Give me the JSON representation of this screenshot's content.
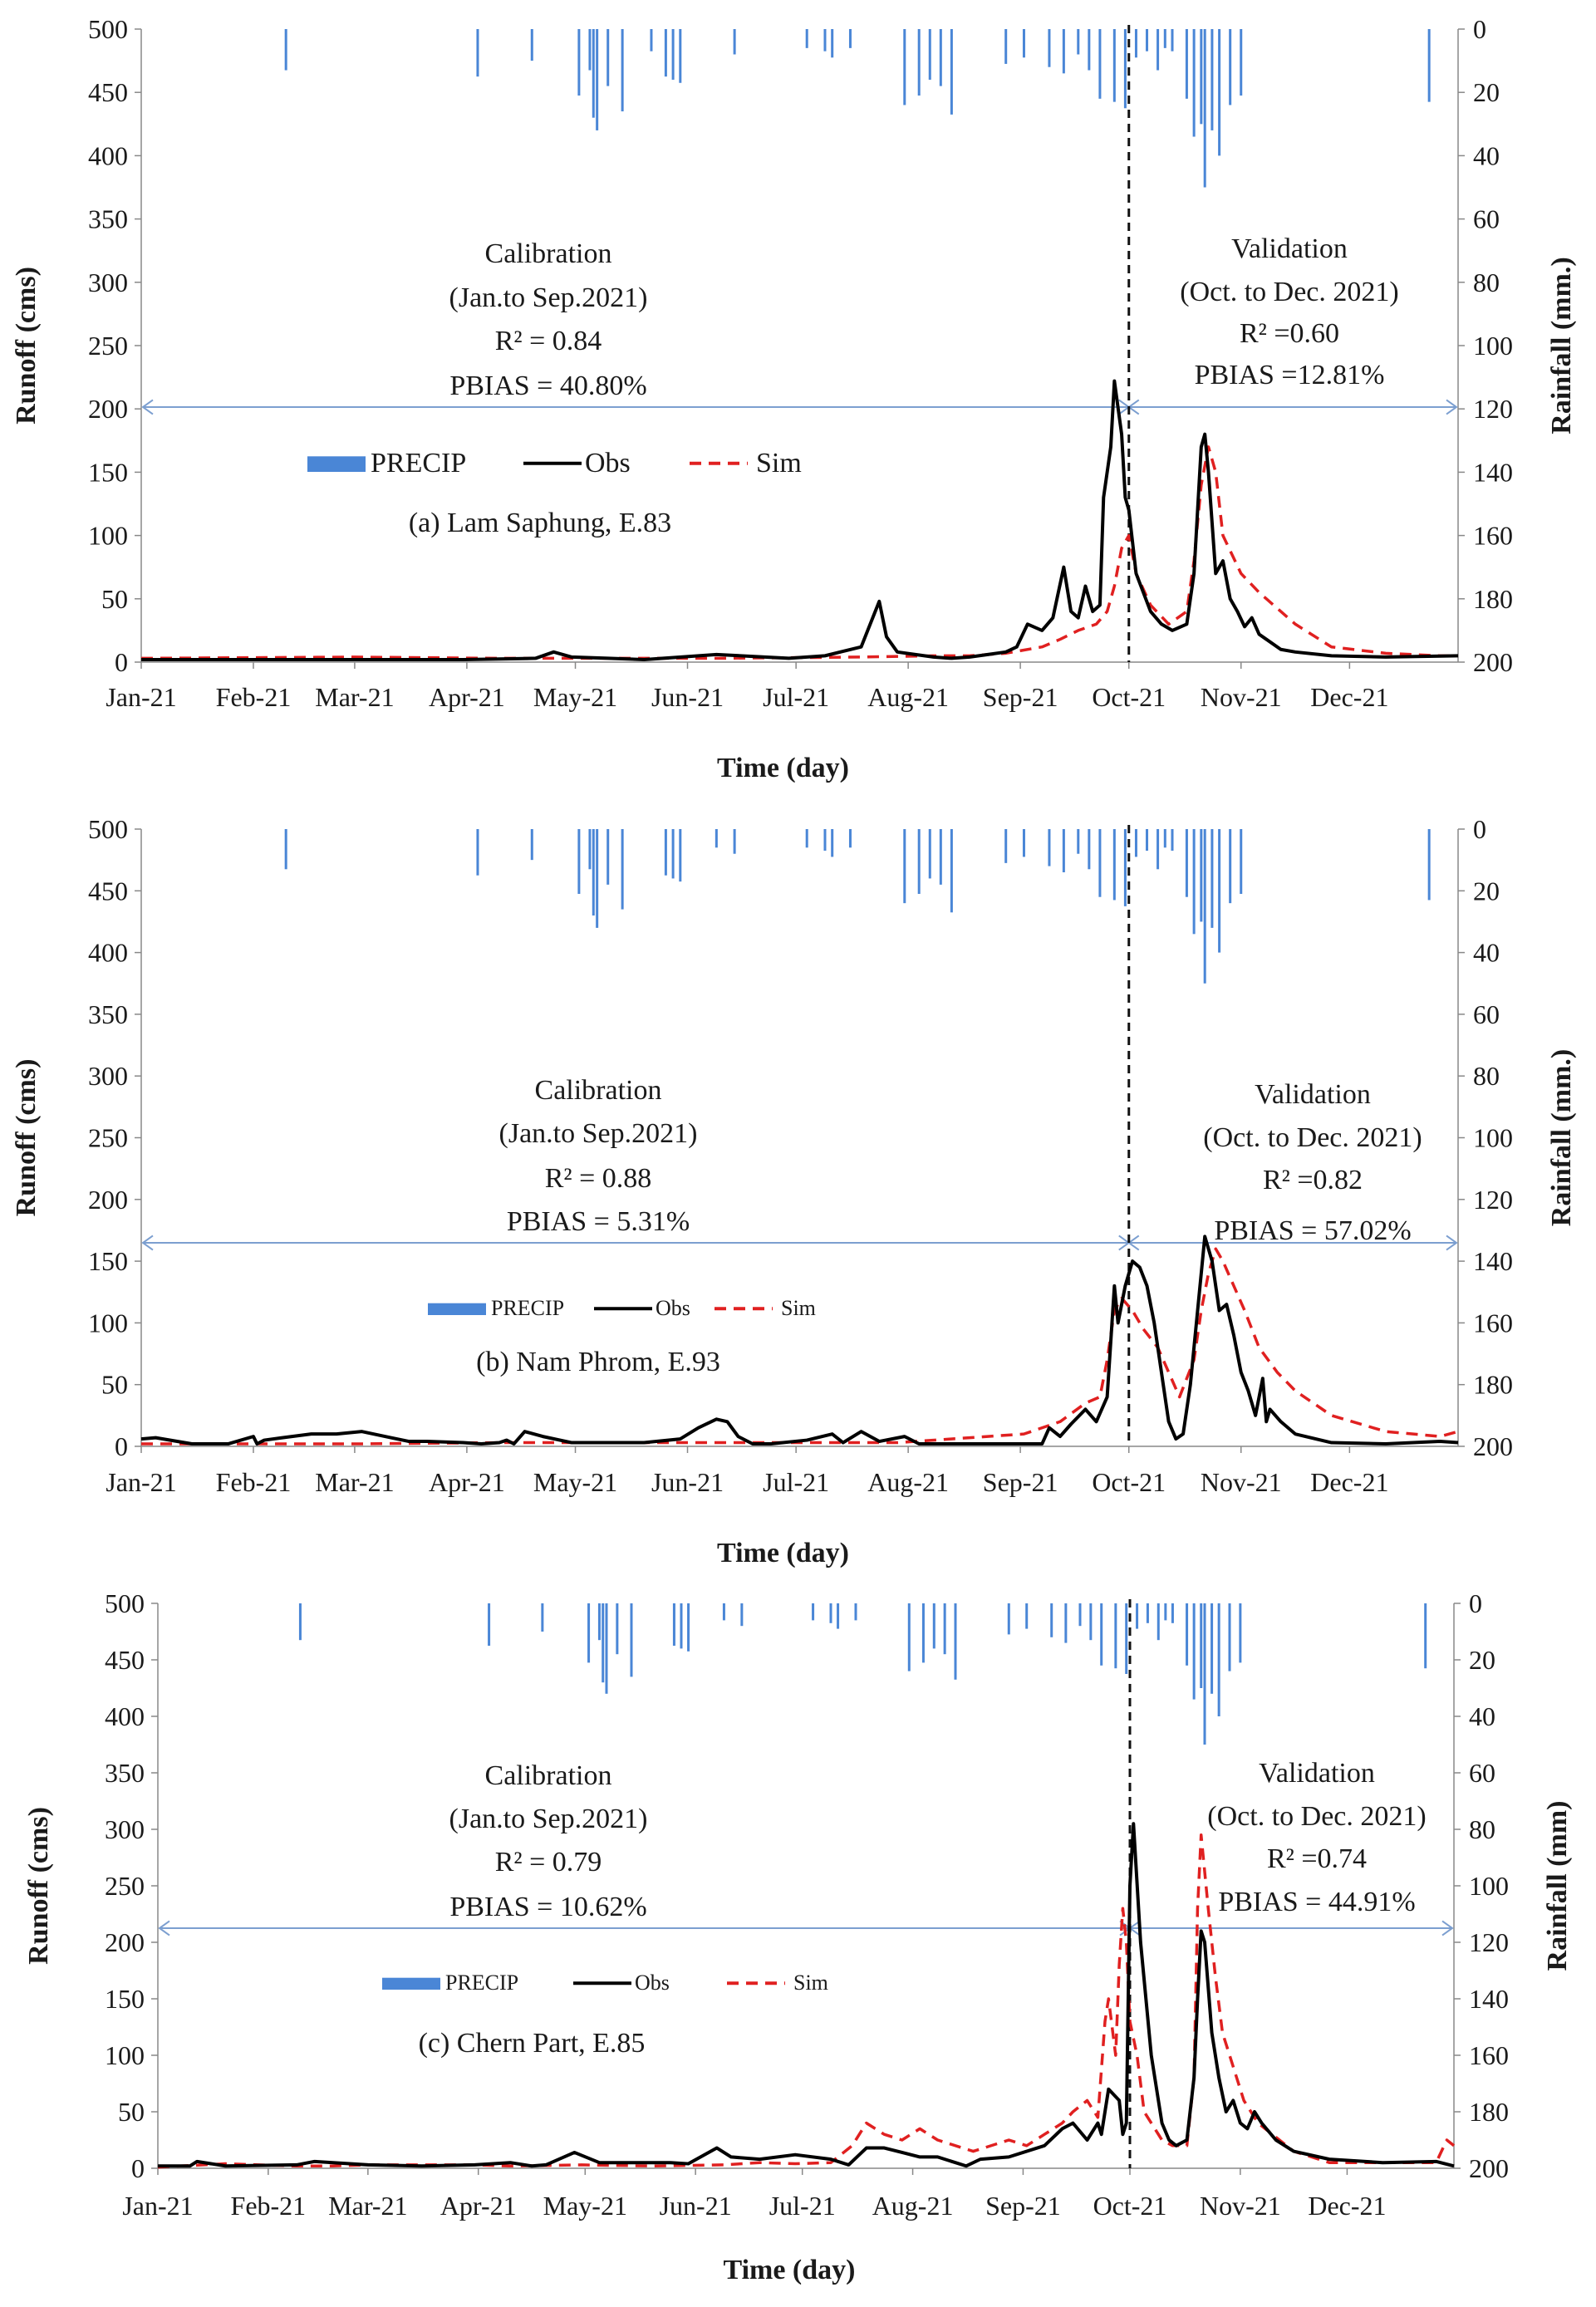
{
  "legend_labels": {
    "precip": "PRECIP",
    "obs": "Obs",
    "sim": "Sim"
  },
  "colors": {
    "precip": "#4a86d6",
    "obs": "#000000",
    "sim": "#e02020",
    "period_line": "#7c9fd0"
  },
  "chart_data": [
    {
      "type": "line",
      "panel_label": "(a) Lam Saphung, E.83",
      "xlabel": "Time (day)",
      "ylabel": "Runoff (cms)",
      "y2label": "Rainfall (mm.)",
      "x_tick_labels": [
        "Jan-21",
        "Feb-21",
        "Mar-21",
        "Apr-21",
        "May-21",
        "Jun-21",
        "Jul-21",
        "Aug-21",
        "Sep-21",
        "Oct-21",
        "Nov-21",
        "Dec-21"
      ],
      "x_range": [
        1,
        365
      ],
      "ylim": [
        0,
        500
      ],
      "yticks": [
        0,
        50,
        100,
        150,
        200,
        250,
        300,
        350,
        400,
        450,
        500
      ],
      "y2lim_inverted": [
        0,
        200
      ],
      "y2ticks": [
        0,
        20,
        40,
        60,
        80,
        100,
        120,
        140,
        160,
        180,
        200
      ],
      "split_day": 274,
      "calibration": {
        "title": "Calibration",
        "period": "(Jan.to Sep.2021)",
        "r2": "R² = 0.84",
        "pbias": "PBIAS = 40.80%"
      },
      "validation": {
        "title": "Validation",
        "period": "(Oct. to Dec. 2021)",
        "r2": "R² =0.60",
        "pbias": "PBIAS =12.81%"
      },
      "precip": {
        "day": [
          41,
          94,
          109,
          122,
          125,
          126,
          127,
          130,
          134,
          142,
          146,
          148,
          150,
          165,
          185,
          190,
          192,
          197,
          212,
          216,
          219,
          222,
          225,
          240,
          245,
          252,
          256,
          260,
          263,
          266,
          270,
          273,
          276,
          279,
          282,
          284,
          286,
          290,
          292,
          294,
          295,
          297,
          299,
          302,
          305,
          357
        ],
        "mm": [
          13,
          15,
          10,
          21,
          13,
          28,
          32,
          18,
          26,
          7,
          15,
          16,
          17,
          8,
          6,
          7,
          9,
          6,
          24,
          21,
          16,
          18,
          27,
          11,
          9,
          12,
          14,
          8,
          13,
          22,
          23,
          25,
          9,
          7,
          13,
          6,
          7,
          22,
          34,
          30,
          50,
          32,
          40,
          24,
          21,
          23
        ]
      },
      "obs": {
        "day": [
          1,
          90,
          110,
          115,
          120,
          130,
          140,
          160,
          180,
          190,
          200,
          205,
          207,
          210,
          215,
          220,
          225,
          230,
          235,
          240,
          243,
          246,
          250,
          253,
          256,
          258,
          260,
          262,
          264,
          266,
          267,
          269,
          270,
          272,
          273,
          274,
          276,
          278,
          280,
          283,
          286,
          290,
          292,
          293,
          294,
          295,
          296,
          297,
          298,
          300,
          302,
          304,
          306,
          308,
          310,
          312,
          316,
          320,
          330,
          345,
          365
        ],
        "q": [
          2,
          2,
          3,
          8,
          4,
          3,
          2,
          6,
          3,
          5,
          12,
          48,
          20,
          8,
          6,
          4,
          3,
          4,
          6,
          8,
          12,
          30,
          25,
          35,
          75,
          40,
          35,
          60,
          40,
          45,
          130,
          170,
          222,
          180,
          130,
          120,
          70,
          55,
          40,
          30,
          25,
          30,
          70,
          120,
          170,
          180,
          150,
          110,
          70,
          80,
          50,
          40,
          28,
          35,
          22,
          18,
          10,
          8,
          5,
          4,
          5
        ]
      },
      "sim": {
        "day": [
          1,
          60,
          100,
          130,
          160,
          200,
          220,
          230,
          240,
          250,
          255,
          260,
          265,
          268,
          270,
          272,
          274,
          276,
          280,
          285,
          290,
          292,
          294,
          296,
          298,
          300,
          305,
          310,
          320,
          330,
          345,
          360,
          365
        ],
        "q": [
          3,
          4,
          3,
          3,
          3,
          4,
          5,
          5,
          7,
          12,
          18,
          25,
          30,
          40,
          60,
          90,
          100,
          70,
          45,
          30,
          40,
          80,
          140,
          170,
          150,
          100,
          70,
          55,
          30,
          12,
          7,
          5,
          5
        ]
      }
    },
    {
      "type": "line",
      "panel_label": "(b) Nam Phrom, E.93",
      "xlabel": "Time (day)",
      "ylabel": "Runoff (cms)",
      "y2label": "Rainfall (mm.)",
      "x_tick_labels": [
        "Jan-21",
        "Feb-21",
        "Mar-21",
        "Apr-21",
        "May-21",
        "Jun-21",
        "Jul-21",
        "Aug-21",
        "Sep-21",
        "Oct-21",
        "Nov-21",
        "Dec-21"
      ],
      "x_range": [
        1,
        365
      ],
      "ylim": [
        0,
        500
      ],
      "yticks": [
        0,
        50,
        100,
        150,
        200,
        250,
        300,
        350,
        400,
        450,
        500
      ],
      "y2lim_inverted": [
        0,
        200
      ],
      "y2ticks": [
        0,
        20,
        40,
        60,
        80,
        100,
        120,
        140,
        160,
        180,
        200
      ],
      "split_day": 274,
      "calibration": {
        "title": "Calibration",
        "period": "(Jan.to Sep.2021)",
        "r2": "R² = 0.88",
        "pbias": "PBIAS = 5.31%"
      },
      "validation": {
        "title": "Validation",
        "period": "(Oct. to Dec. 2021)",
        "r2": "R² =0.82",
        "pbias": "PBIAS = 57.02%"
      },
      "precip": {
        "day": [
          41,
          94,
          109,
          122,
          125,
          126,
          127,
          130,
          134,
          146,
          148,
          150,
          160,
          165,
          185,
          190,
          192,
          197,
          212,
          216,
          219,
          222,
          225,
          240,
          245,
          252,
          256,
          260,
          263,
          266,
          270,
          273,
          276,
          279,
          282,
          284,
          286,
          290,
          292,
          294,
          295,
          297,
          299,
          302,
          305,
          357
        ],
        "mm": [
          13,
          15,
          10,
          21,
          13,
          28,
          32,
          18,
          26,
          15,
          16,
          17,
          6,
          8,
          6,
          7,
          9,
          6,
          24,
          21,
          16,
          18,
          27,
          11,
          9,
          12,
          14,
          8,
          13,
          22,
          23,
          25,
          9,
          7,
          13,
          6,
          7,
          22,
          34,
          30,
          50,
          32,
          40,
          24,
          21,
          23
        ]
      },
      "obs": {
        "day": [
          1,
          5,
          15,
          25,
          32,
          33,
          35,
          40,
          48,
          55,
          62,
          70,
          75,
          80,
          90,
          95,
          100,
          102,
          104,
          107,
          112,
          120,
          128,
          140,
          150,
          155,
          160,
          163,
          166,
          170,
          175,
          185,
          192,
          195,
          200,
          205,
          212,
          216,
          222,
          228,
          240,
          250,
          252,
          255,
          258,
          262,
          265,
          268,
          270,
          271,
          273,
          275,
          277,
          279,
          281,
          283,
          285,
          287,
          289,
          291,
          293,
          295,
          297,
          299,
          301,
          303,
          305,
          307,
          309,
          311,
          312,
          313,
          316,
          320,
          330,
          345,
          360,
          365
        ],
        "q": [
          6,
          7,
          2,
          2,
          8,
          2,
          5,
          7,
          10,
          10,
          12,
          7,
          4,
          4,
          3,
          2,
          3,
          5,
          2,
          12,
          8,
          3,
          3,
          3,
          6,
          15,
          22,
          20,
          8,
          2,
          2,
          5,
          10,
          3,
          12,
          4,
          8,
          2,
          2,
          2,
          2,
          2,
          15,
          8,
          18,
          30,
          20,
          40,
          130,
          100,
          130,
          150,
          145,
          130,
          100,
          60,
          20,
          6,
          10,
          50,
          110,
          170,
          150,
          110,
          115,
          90,
          60,
          45,
          25,
          55,
          20,
          30,
          20,
          10,
          3,
          2,
          4,
          3
        ]
      },
      "sim": {
        "day": [
          1,
          60,
          100,
          140,
          180,
          210,
          230,
          245,
          255,
          262,
          266,
          268,
          270,
          272,
          275,
          278,
          282,
          285,
          288,
          292,
          294,
          296,
          298,
          300,
          303,
          306,
          310,
          315,
          320,
          330,
          345,
          360,
          365
        ],
        "q": [
          2,
          2,
          3,
          3,
          3,
          3,
          7,
          10,
          20,
          35,
          40,
          70,
          110,
          120,
          110,
          95,
          80,
          60,
          40,
          70,
          110,
          140,
          160,
          150,
          130,
          110,
          80,
          60,
          45,
          25,
          12,
          8,
          12
        ]
      }
    },
    {
      "type": "line",
      "panel_label": "(c) Chern Part, E.85",
      "xlabel": "Time (day)",
      "ylabel": "Runoff (cms)",
      "y2label": "Rainfall (mm)",
      "x_tick_labels": [
        "Jan-21",
        "Feb-21",
        "Mar-21",
        "Apr-21",
        "May-21",
        "Jun-21",
        "Jul-21",
        "Aug-21",
        "Sep-21",
        "Oct-21",
        "Nov-21",
        "Dec-21"
      ],
      "x_range": [
        1,
        365
      ],
      "ylim": [
        0,
        500
      ],
      "yticks": [
        0,
        50,
        100,
        150,
        200,
        250,
        300,
        350,
        400,
        450,
        500
      ],
      "y2lim_inverted": [
        0,
        200
      ],
      "y2ticks": [
        0,
        20,
        40,
        60,
        80,
        100,
        120,
        140,
        160,
        180,
        200
      ],
      "split_day": 274,
      "calibration": {
        "title": "Calibration",
        "period": "(Jan.to Sep.2021)",
        "r2": "R² = 0.79",
        "pbias": "PBIAS = 10.62%"
      },
      "validation": {
        "title": "Validation",
        "period": "(Oct. to Dec. 2021)",
        "r2": "R² =0.74",
        "pbias": "PBIAS = 44.91%"
      },
      "precip": {
        "day": [
          41,
          94,
          109,
          122,
          125,
          126,
          127,
          130,
          134,
          146,
          148,
          150,
          160,
          165,
          185,
          190,
          192,
          197,
          212,
          216,
          219,
          222,
          225,
          240,
          245,
          252,
          256,
          260,
          263,
          266,
          270,
          273,
          276,
          279,
          282,
          284,
          286,
          290,
          292,
          294,
          295,
          297,
          299,
          302,
          305,
          357
        ],
        "mm": [
          13,
          15,
          10,
          21,
          13,
          28,
          32,
          18,
          26,
          15,
          16,
          17,
          6,
          8,
          6,
          7,
          9,
          6,
          24,
          21,
          16,
          18,
          27,
          11,
          9,
          12,
          14,
          8,
          13,
          22,
          23,
          25,
          9,
          7,
          13,
          6,
          7,
          22,
          34,
          30,
          50,
          32,
          40,
          24,
          21,
          23
        ]
      },
      "obs": {
        "day": [
          1,
          10,
          12,
          20,
          40,
          45,
          60,
          75,
          90,
          100,
          106,
          110,
          118,
          125,
          135,
          145,
          150,
          158,
          162,
          170,
          180,
          190,
          195,
          200,
          205,
          210,
          215,
          220,
          225,
          228,
          232,
          240,
          250,
          255,
          258,
          262,
          265,
          266,
          268,
          271,
          272,
          273,
          274,
          275,
          277,
          280,
          283,
          285,
          287,
          290,
          292,
          293,
          294,
          295,
          297,
          299,
          301,
          303,
          305,
          307,
          309,
          311,
          315,
          320,
          330,
          345,
          360,
          365
        ],
        "q": [
          2,
          2,
          6,
          2,
          3,
          6,
          3,
          2,
          3,
          5,
          2,
          3,
          14,
          5,
          5,
          5,
          4,
          18,
          10,
          8,
          12,
          8,
          3,
          18,
          18,
          14,
          10,
          10,
          5,
          2,
          8,
          10,
          20,
          35,
          40,
          25,
          40,
          30,
          70,
          60,
          30,
          40,
          250,
          305,
          200,
          100,
          40,
          25,
          20,
          25,
          80,
          150,
          210,
          200,
          120,
          80,
          50,
          60,
          40,
          35,
          50,
          40,
          25,
          15,
          8,
          5,
          6,
          2
        ]
      },
      "sim": {
        "day": [
          1,
          20,
          40,
          50,
          60,
          75,
          90,
          100,
          120,
          140,
          160,
          170,
          180,
          190,
          196,
          200,
          205,
          210,
          215,
          220,
          230,
          240,
          245,
          250,
          255,
          258,
          262,
          265,
          267,
          268,
          270,
          271,
          272,
          273,
          274,
          276,
          278,
          280,
          283,
          286,
          290,
          292,
          293,
          294,
          296,
          298,
          300,
          303,
          306,
          310,
          320,
          330,
          345,
          360,
          363,
          365
        ],
        "q": [
          1,
          4,
          2,
          2,
          3,
          3,
          3,
          2,
          3,
          2,
          3,
          5,
          4,
          5,
          20,
          40,
          30,
          25,
          35,
          25,
          15,
          25,
          20,
          30,
          40,
          50,
          60,
          45,
          130,
          150,
          100,
          180,
          230,
          200,
          130,
          100,
          50,
          40,
          25,
          20,
          20,
          80,
          230,
          295,
          230,
          170,
          120,
          90,
          60,
          40,
          15,
          5,
          5,
          5,
          25,
          20
        ]
      }
    }
  ]
}
